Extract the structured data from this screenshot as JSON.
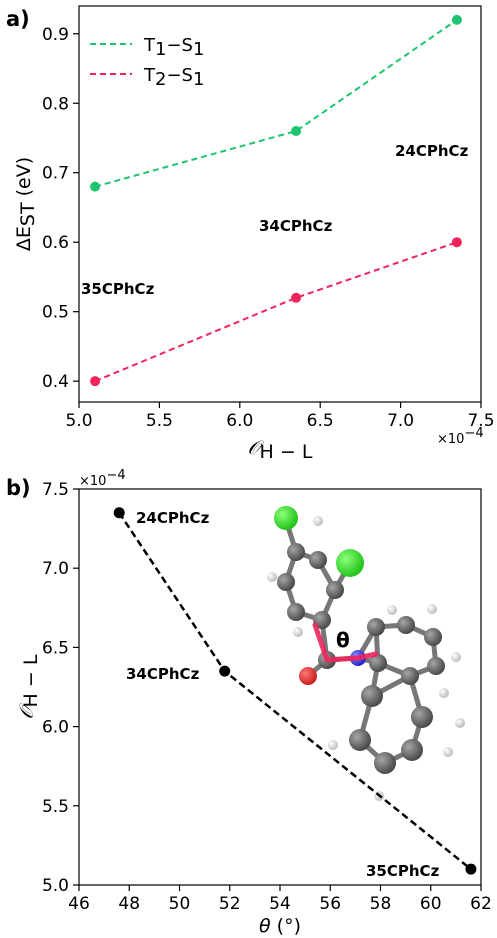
{
  "chart_data": [
    {
      "panel_label": "a)",
      "type": "line",
      "xlabel_main": "𝒪",
      "xlabel_sub": "H − L",
      "ylabel_main": "ΔE",
      "ylabel_sub": "ST",
      "ylabel_unit": " (eV)",
      "x_exponent_base": "×10",
      "x_exponent_power": "−4",
      "xlim": [
        5.0,
        7.5
      ],
      "ylim": [
        0.37,
        0.94
      ],
      "xticks": [
        "5.0",
        "5.5",
        "6.0",
        "6.5",
        "7.0",
        "7.5"
      ],
      "yticks": [
        "0.4",
        "0.5",
        "0.6",
        "0.7",
        "0.8",
        "0.9"
      ],
      "x": [
        5.1,
        6.35,
        7.35
      ],
      "series": [
        {
          "name_a": "T",
          "name_a_sub": "1",
          "name_b": "−S",
          "name_b_sub": "1",
          "color": "#1ec46f",
          "values": [
            0.68,
            0.76,
            0.92
          ]
        },
        {
          "name_a": "T",
          "name_a_sub": "2",
          "name_b": "−S",
          "name_b_sub": "1",
          "color": "#f0245b",
          "values": [
            0.4,
            0.52,
            0.6
          ]
        }
      ],
      "annotations": [
        {
          "text": "35CPhCz"
        },
        {
          "text": "34CPhCz"
        },
        {
          "text": "24CPhCz"
        }
      ],
      "legend": "upper-left",
      "grid": false
    },
    {
      "panel_label": "b)",
      "type": "line",
      "xlabel_main": "θ",
      "xlabel_unit": " (°)",
      "ylabel_main": "𝒪",
      "ylabel_sub": "H − L",
      "y_exponent_base": "×10",
      "y_exponent_power": "−4",
      "xlim": [
        46,
        62
      ],
      "ylim": [
        5.0,
        7.5
      ],
      "xticks": [
        "46",
        "48",
        "50",
        "52",
        "54",
        "56",
        "58",
        "60",
        "62"
      ],
      "yticks": [
        "5.0",
        "5.5",
        "6.0",
        "6.5",
        "7.0",
        "7.5"
      ],
      "x": [
        47.6,
        51.8,
        61.6
      ],
      "values": [
        7.35,
        6.35,
        5.1
      ],
      "labels": [
        "24CPhCz",
        "34CPhCz",
        "35CPhCz"
      ],
      "color": "#000000",
      "inset": {
        "angle_label": "θ"
      },
      "grid": false
    }
  ]
}
